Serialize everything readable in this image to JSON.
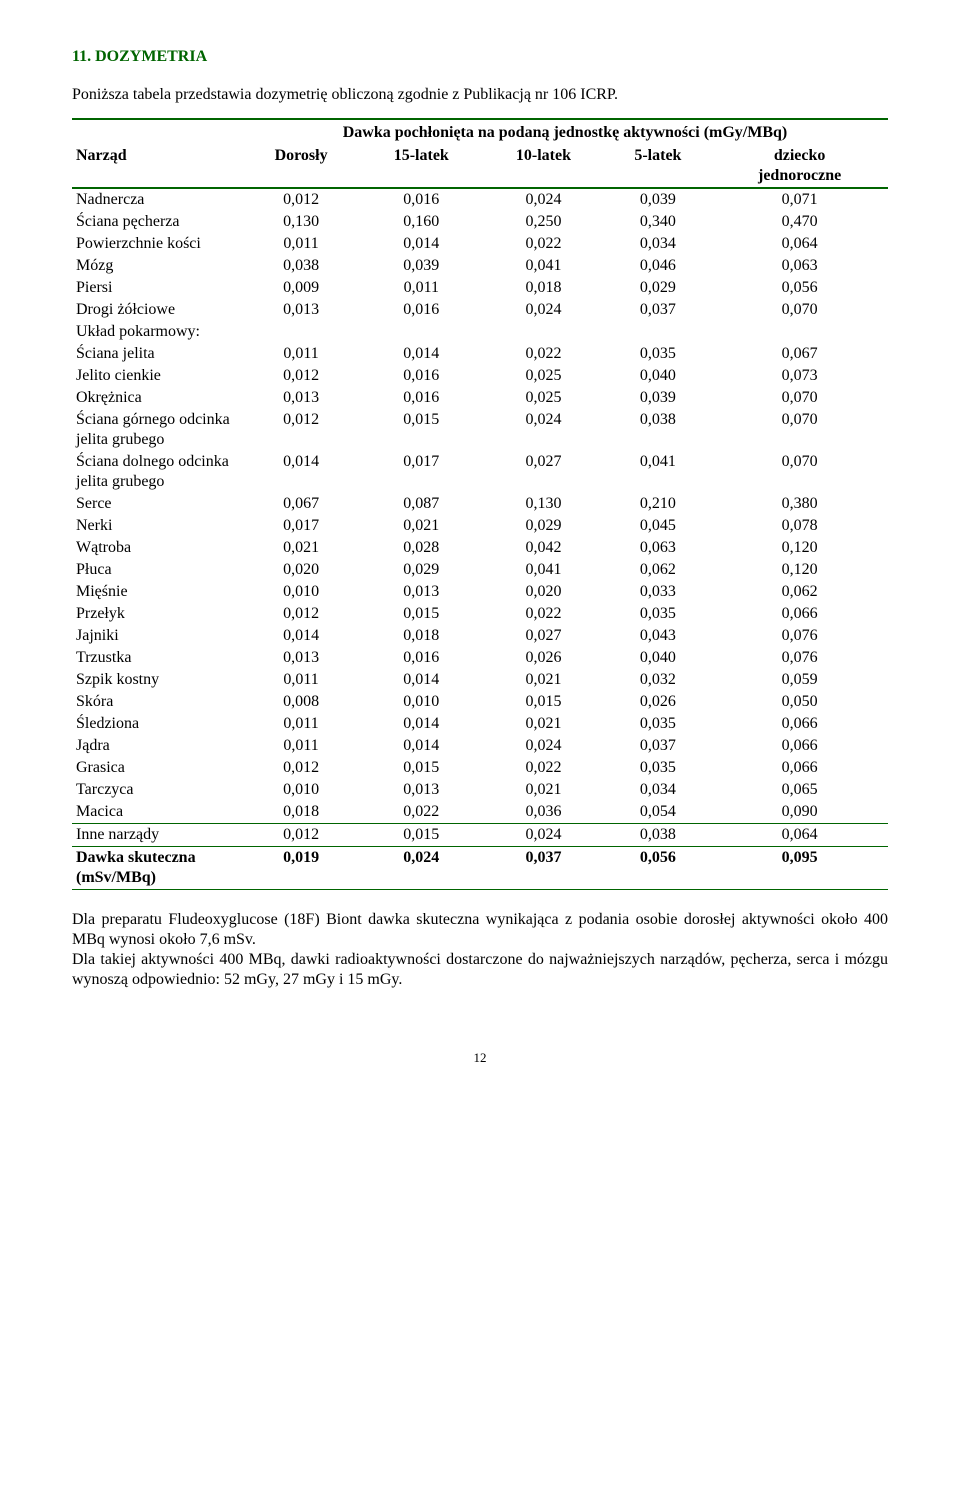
{
  "heading": "11.   DOZYMETRIA",
  "intro": "Poniższa tabela przedstawia dozymetrię obliczoną zgodnie z Publikacją nr 106 ICRP.",
  "table_superheader": "Dawka pochłonięta na podaną jednostkę aktywności (mGy/MBq)",
  "columns": [
    "Narząd",
    "Dorosły",
    "15-latek",
    "10-latek",
    "5-latek",
    "dziecko jednoroczne"
  ],
  "rows": [
    {
      "label": "Nadnercza",
      "vals": [
        "0,012",
        "0,016",
        "0,024",
        "0,039",
        "0,071"
      ]
    },
    {
      "label": "Ściana pęcherza",
      "vals": [
        "0,130",
        "0,160",
        "0,250",
        "0,340",
        "0,470"
      ]
    },
    {
      "label": "Powierzchnie kości",
      "vals": [
        "0,011",
        "0,014",
        "0,022",
        "0,034",
        "0,064"
      ]
    },
    {
      "label": "Mózg",
      "vals": [
        "0,038",
        "0,039",
        "0,041",
        "0,046",
        "0,063"
      ]
    },
    {
      "label": "Piersi",
      "vals": [
        "0,009",
        "0,011",
        "0,018",
        "0,029",
        "0,056"
      ]
    },
    {
      "label": "Drogi żółciowe",
      "vals": [
        "0,013",
        "0,016",
        "0,024",
        "0,037",
        "0,070"
      ]
    },
    {
      "label": "Układ pokarmowy:",
      "vals": [
        "",
        "",
        "",
        "",
        ""
      ]
    },
    {
      "label": "Ściana jelita",
      "vals": [
        "0,011",
        "0,014",
        "0,022",
        "0,035",
        "0,067"
      ]
    },
    {
      "label": "Jelito cienkie",
      "vals": [
        "0,012",
        "0,016",
        "0,025",
        "0,040",
        "0,073"
      ]
    },
    {
      "label": "Okrężnica",
      "vals": [
        "0,013",
        "0,016",
        "0,025",
        "0,039",
        "0,070"
      ]
    },
    {
      "label": "Ściana górnego odcinka jelita grubego",
      "vals": [
        "0,012",
        "0,015",
        "0,024",
        "0,038",
        "0,070"
      ]
    },
    {
      "label": "Ściana dolnego odcinka jelita grubego",
      "vals": [
        "0,014",
        "0,017",
        "0,027",
        "0,041",
        "0,070"
      ]
    },
    {
      "label": "Serce",
      "vals": [
        "0,067",
        "0,087",
        "0,130",
        "0,210",
        "0,380"
      ]
    },
    {
      "label": "Nerki",
      "vals": [
        "0,017",
        "0,021",
        "0,029",
        "0,045",
        "0,078"
      ]
    },
    {
      "label": "Wątroba",
      "vals": [
        "0,021",
        "0,028",
        "0,042",
        "0,063",
        "0,120"
      ]
    },
    {
      "label": "Płuca",
      "vals": [
        "0,020",
        "0,029",
        "0,041",
        "0,062",
        "0,120"
      ]
    },
    {
      "label": "Mięśnie",
      "vals": [
        "0,010",
        "0,013",
        "0,020",
        "0,033",
        "0,062"
      ]
    },
    {
      "label": "Przełyk",
      "vals": [
        "0,012",
        "0,015",
        "0,022",
        "0,035",
        "0,066"
      ]
    },
    {
      "label": "Jajniki",
      "vals": [
        "0,014",
        "0,018",
        "0,027",
        "0,043",
        "0,076"
      ]
    },
    {
      "label": "Trzustka",
      "vals": [
        "0,013",
        "0,016",
        "0,026",
        "0,040",
        "0,076"
      ]
    },
    {
      "label": "Szpik kostny",
      "vals": [
        "0,011",
        "0,014",
        "0,021",
        "0,032",
        "0,059"
      ]
    },
    {
      "label": "Skóra",
      "vals": [
        "0,008",
        "0,010",
        "0,015",
        "0,026",
        "0,050"
      ]
    },
    {
      "label": "Śledziona",
      "vals": [
        "0,011",
        "0,014",
        "0,021",
        "0,035",
        "0,066"
      ]
    },
    {
      "label": "Jądra",
      "vals": [
        "0,011",
        "0,014",
        "0,024",
        "0,037",
        "0,066"
      ]
    },
    {
      "label": "Grasica",
      "vals": [
        "0,012",
        "0,015",
        "0,022",
        "0,035",
        "0,066"
      ]
    },
    {
      "label": "Tarczyca",
      "vals": [
        "0,010",
        "0,013",
        "0,021",
        "0,034",
        "0,065"
      ]
    },
    {
      "label": "Macica",
      "vals": [
        "0,018",
        "0,022",
        "0,036",
        "0,054",
        "0,090"
      ]
    },
    {
      "label": "Inne narządy",
      "vals": [
        "0,012",
        "0,015",
        "0,024",
        "0,038",
        "0,064"
      ]
    }
  ],
  "summary_row": {
    "label": "Dawka skuteczna (mSv/MBq)",
    "vals": [
      "0,019",
      "0,024",
      "0,037",
      "0,056",
      "0,095"
    ]
  },
  "footer_p1": "Dla preparatu Fludeoxyglucose (18F) Biont dawka skuteczna wynikająca z podania osobie dorosłej aktywności około 400 MBq wynosi około 7,6 mSv.",
  "footer_p2": "Dla takiej aktywności 400 MBq, dawki radioaktywności dostarczone do najważniejszych narządów, pęcherza, serca i mózgu wynoszą odpowiednio: 52 mGy, 27 mGy i 15 mGy.",
  "page_num": "12",
  "colors": {
    "heading": "#006400",
    "rule": "#006400",
    "text": "#000000",
    "background": "#ffffff"
  },
  "font_family": "Times New Roman",
  "base_fontsize_pt": 12
}
